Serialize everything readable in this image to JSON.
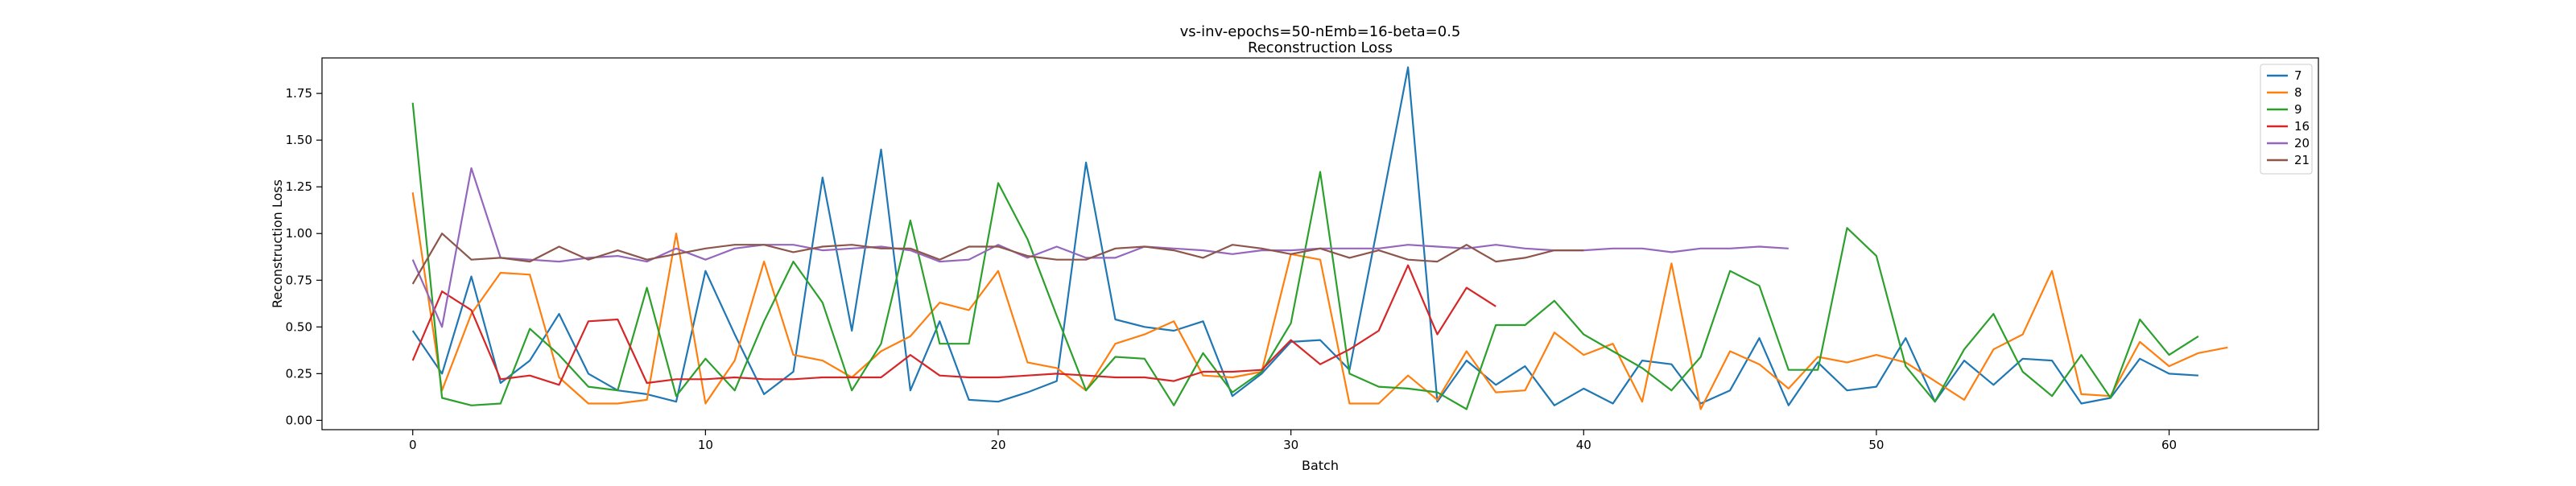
{
  "chart_data": {
    "type": "line",
    "title": "vs-inv-epochs=50-nEmb=16-beta=0.5",
    "subtitle": "Reconstruction Loss",
    "xlabel": "Batch",
    "ylabel": "Reconstruction Loss",
    "xlim": [
      -3.1,
      65.1
    ],
    "ylim": [
      -0.05,
      1.94
    ],
    "xticks": [
      0,
      10,
      20,
      30,
      40,
      50,
      60
    ],
    "yticks": [
      0.0,
      0.25,
      0.5,
      0.75,
      1.0,
      1.25,
      1.5,
      1.75
    ],
    "ytick_labels": [
      "0.00",
      "0.25",
      "0.50",
      "0.75",
      "1.00",
      "1.25",
      "1.50",
      "1.75"
    ],
    "grid": false,
    "legend_position": "top-right",
    "series": [
      {
        "name": "7",
        "color": "#1f77b4",
        "values": [
          0.48,
          0.25,
          0.77,
          0.2,
          0.32,
          0.57,
          0.25,
          0.16,
          0.14,
          0.1,
          0.8,
          0.46,
          0.14,
          0.26,
          1.3,
          0.48,
          1.45,
          0.16,
          0.53,
          0.11,
          0.1,
          0.15,
          0.21,
          1.38,
          0.54,
          0.5,
          0.48,
          0.53,
          0.13,
          0.25,
          0.42,
          0.43,
          0.27,
          1.07,
          1.89,
          0.1,
          0.32,
          0.19,
          0.29,
          0.08,
          0.17,
          0.09,
          0.32,
          0.3,
          0.09,
          0.16,
          0.44,
          0.08,
          0.31,
          0.16,
          0.18,
          0.44,
          0.1,
          0.32,
          0.19,
          0.33,
          0.32,
          0.09,
          0.12,
          0.33,
          0.25,
          0.24
        ]
      },
      {
        "name": "8",
        "color": "#ff7f0e",
        "values": [
          1.22,
          0.16,
          0.57,
          0.79,
          0.78,
          0.23,
          0.09,
          0.09,
          0.11,
          1.0,
          0.09,
          0.32,
          0.85,
          0.35,
          0.32,
          0.23,
          0.37,
          0.45,
          0.63,
          0.59,
          0.8,
          0.31,
          0.28,
          0.16,
          0.41,
          0.46,
          0.53,
          0.24,
          0.23,
          0.26,
          0.89,
          0.86,
          0.09,
          0.09,
          0.24,
          0.11,
          0.37,
          0.15,
          0.16,
          0.47,
          0.35,
          0.41,
          0.1,
          0.84,
          0.06,
          0.37,
          0.3,
          0.17,
          0.34,
          0.31,
          0.35,
          0.31,
          0.21,
          0.11,
          0.38,
          0.46,
          0.8,
          0.14,
          0.13,
          0.42,
          0.29,
          0.36,
          0.39
        ]
      },
      {
        "name": "9",
        "color": "#2ca02c",
        "values": [
          1.7,
          0.12,
          0.08,
          0.09,
          0.49,
          0.35,
          0.18,
          0.16,
          0.71,
          0.13,
          0.33,
          0.16,
          0.53,
          0.85,
          0.63,
          0.16,
          0.41,
          1.07,
          0.41,
          0.41,
          1.27,
          0.97,
          0.56,
          0.16,
          0.34,
          0.33,
          0.08,
          0.36,
          0.15,
          0.26,
          0.52,
          1.33,
          0.25,
          0.18,
          0.17,
          0.15,
          0.06,
          0.51,
          0.51,
          0.64,
          0.46,
          0.37,
          0.28,
          0.16,
          0.34,
          0.8,
          0.72,
          0.27,
          0.27,
          1.03,
          0.88,
          0.29,
          0.1,
          0.38,
          0.57,
          0.26,
          0.13,
          0.35,
          0.12,
          0.54,
          0.35,
          0.45
        ]
      },
      {
        "name": "16",
        "color": "#d62728",
        "values": [
          0.32,
          0.69,
          0.59,
          0.22,
          0.24,
          0.19,
          0.53,
          0.54,
          0.2,
          0.22,
          0.22,
          0.23,
          0.22,
          0.22,
          0.23,
          0.23,
          0.23,
          0.35,
          0.24,
          0.23,
          0.23,
          0.24,
          0.25,
          0.24,
          0.23,
          0.23,
          0.21,
          0.26,
          0.26,
          0.27,
          0.43,
          0.3,
          0.38,
          0.48,
          0.83,
          0.46,
          0.71,
          0.61
        ]
      },
      {
        "name": "20",
        "color": "#9467bd",
        "values": [
          0.86,
          0.5,
          1.35,
          0.87,
          0.86,
          0.85,
          0.87,
          0.88,
          0.85,
          0.92,
          0.86,
          0.92,
          0.94,
          0.94,
          0.91,
          0.92,
          0.93,
          0.91,
          0.85,
          0.86,
          0.94,
          0.87,
          0.93,
          0.87,
          0.87,
          0.93,
          0.92,
          0.91,
          0.89,
          0.91,
          0.91,
          0.92,
          0.92,
          0.92,
          0.94,
          0.93,
          0.92,
          0.94,
          0.92,
          0.91,
          0.91,
          0.92,
          0.92,
          0.9,
          0.92,
          0.92,
          0.93,
          0.92
        ]
      },
      {
        "name": "21",
        "color": "#8c564b",
        "values": [
          0.73,
          1.0,
          0.86,
          0.87,
          0.85,
          0.93,
          0.86,
          0.91,
          0.86,
          0.89,
          0.92,
          0.94,
          0.94,
          0.9,
          0.93,
          0.94,
          0.92,
          0.92,
          0.86,
          0.93,
          0.93,
          0.88,
          0.86,
          0.86,
          0.92,
          0.93,
          0.91,
          0.87,
          0.94,
          0.92,
          0.89,
          0.92,
          0.87,
          0.91,
          0.86,
          0.85,
          0.94,
          0.85,
          0.87,
          0.91,
          0.91
        ]
      }
    ]
  }
}
